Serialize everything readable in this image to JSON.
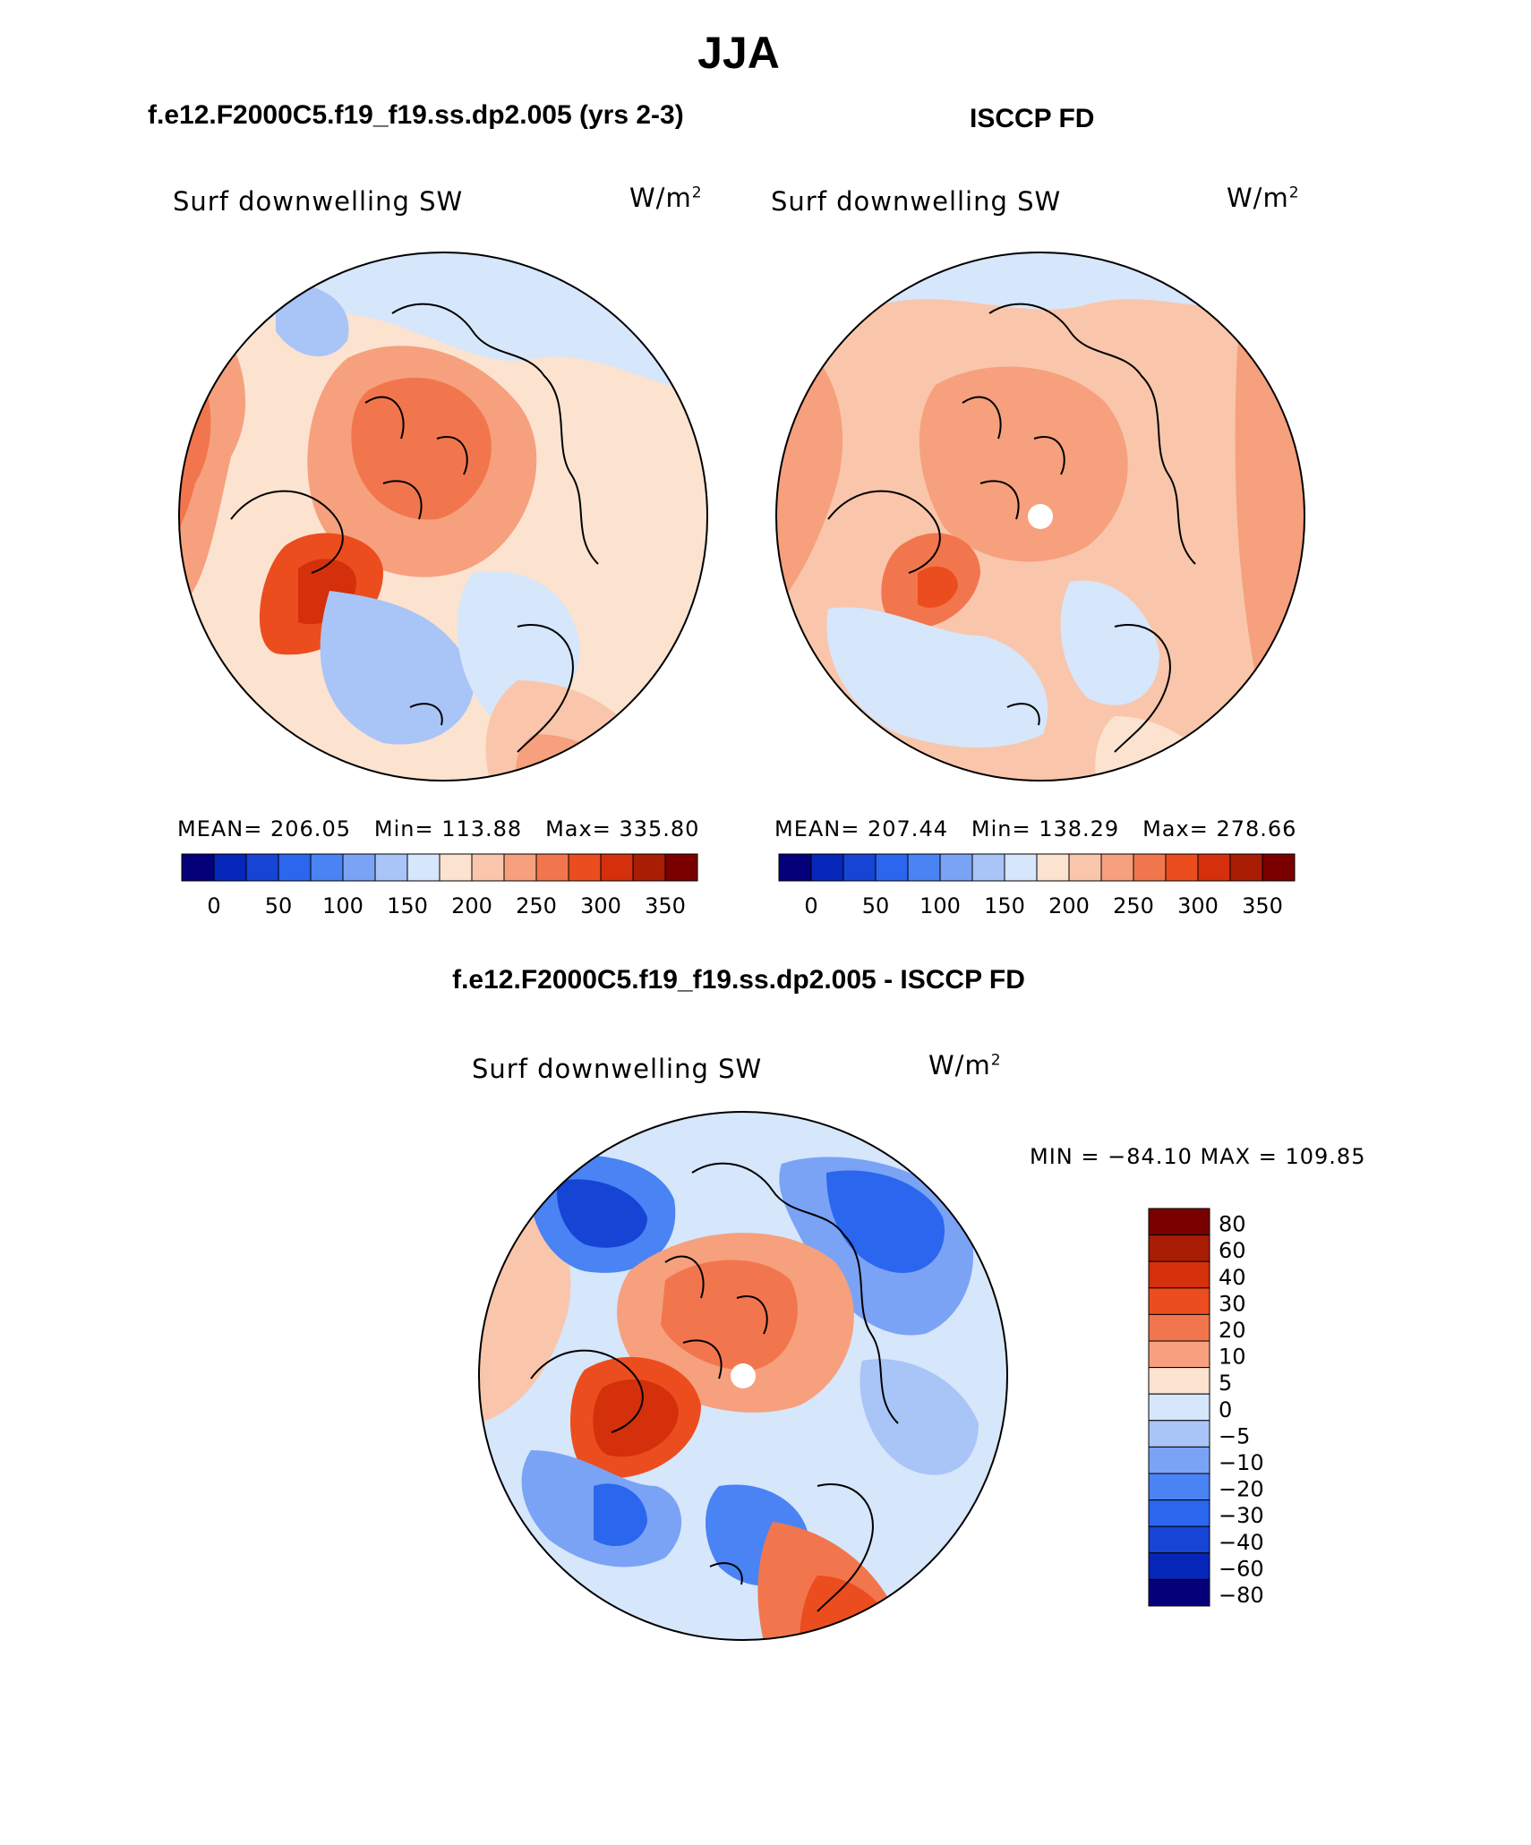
{
  "figure": {
    "season": "JJA",
    "case_title": "f.e12.F2000C5.f19_f19.ss.dp2.005 (yrs 2-3)",
    "obs_title": "ISCCP FD",
    "diff_title": "f.e12.F2000C5.f19_f19.ss.dp2.005 - ISCCP FD"
  },
  "panels": {
    "model": {
      "variable": "Surf downwelling SW",
      "units": "W/m",
      "units_exp": "2",
      "mean_label": "MEAN=",
      "mean": "206.05",
      "min_label": "Min=",
      "min": "113.88",
      "max_label": "Max=",
      "max": "335.80"
    },
    "obs": {
      "variable": "Surf downwelling SW",
      "units": "W/m",
      "units_exp": "2",
      "mean_label": "MEAN=",
      "mean": "207.44",
      "min_label": "Min=",
      "min": "138.29",
      "max_label": "Max=",
      "max": "278.66"
    },
    "diff": {
      "variable": "Surf downwelling SW",
      "units": "W/m",
      "units_exp": "2",
      "minmax_text": "MIN = −84.10 MAX = 109.85"
    }
  },
  "colorbars": {
    "abs_colors": [
      "#04007a",
      "#0526b8",
      "#1645d6",
      "#2b66ee",
      "#4a83f3",
      "#7aa3f5",
      "#a9c4f7",
      "#d6e6fb",
      "#fbe3d0",
      "#f9c6ab",
      "#f6a07e",
      "#f2764d",
      "#ec4d1e",
      "#d4300c",
      "#a91d04",
      "#7a0000"
    ],
    "abs_ticks": [
      "0",
      "50",
      "100",
      "150",
      "200",
      "250",
      "300",
      "350"
    ],
    "diff_colors": [
      "#7a0000",
      "#a91d04",
      "#d4300c",
      "#ec4d1e",
      "#f2764d",
      "#f6a07e",
      "#fbe3d0",
      "#d6e6fb",
      "#a9c4f7",
      "#7aa3f5",
      "#4a83f3",
      "#2b66ee",
      "#1645d6",
      "#0526b8",
      "#04007a"
    ],
    "diff_ticks": [
      "80",
      "60",
      "40",
      "30",
      "20",
      "10",
      "5",
      "0",
      "−5",
      "−10",
      "−20",
      "−30",
      "−40",
      "−60",
      "−80"
    ]
  }
}
